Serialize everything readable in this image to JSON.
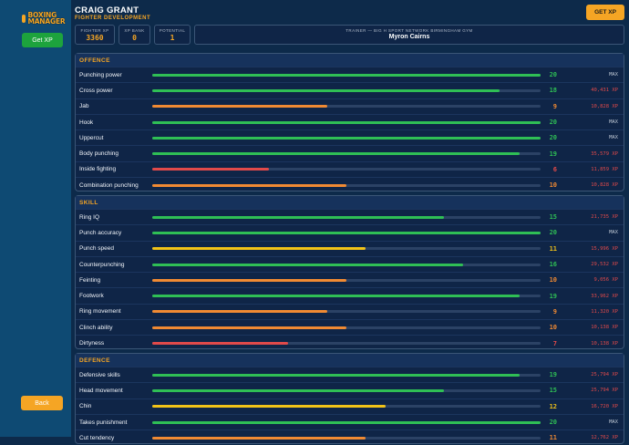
{
  "sidebar": {
    "logo_text": "BOXING MANAGER",
    "get_xp_label": "Get XP",
    "back_label": "Back"
  },
  "header": {
    "name": "CRAIG GRANT",
    "subtitle": "FIGHTER DEVELOPMENT",
    "get_xp_label": "GET XP",
    "stats": [
      {
        "label": "FIGHTER XP",
        "value": "3360"
      },
      {
        "label": "XP BANK",
        "value": "0"
      },
      {
        "label": "POTENTIAL",
        "value": "1"
      }
    ],
    "trainer_label": "TRAINER — BIG H SPORT NETWORK BIRMINGHAM GYM",
    "trainer_name": "Myron Cairns"
  },
  "colors": {
    "green": "#2fbf55",
    "orange": "#f08a33",
    "yellow": "#f2c318",
    "red": "#e14a4a",
    "accent": "#f5a524"
  },
  "sections": [
    {
      "title": "OFFENCE",
      "rows": [
        {
          "name": "Punching power",
          "level": "20",
          "progress": 1.0,
          "color": "green",
          "cost": "MAX"
        },
        {
          "name": "Cross power",
          "level": "18",
          "progress": 0.895,
          "color": "green",
          "cost": "40,431 XP"
        },
        {
          "name": "Jab",
          "level": "9",
          "progress": 0.45,
          "color": "orange",
          "cost": "10,828 XP"
        },
        {
          "name": "Hook",
          "level": "20",
          "progress": 1.0,
          "color": "green",
          "cost": "MAX"
        },
        {
          "name": "Uppercut",
          "level": "20",
          "progress": 1.0,
          "color": "green",
          "cost": "MAX"
        },
        {
          "name": "Body punching",
          "level": "19",
          "progress": 0.945,
          "color": "green",
          "cost": "35,579 XP"
        },
        {
          "name": "Inside fighting",
          "level": "6",
          "progress": 0.3,
          "color": "red",
          "cost": "11,859 XP"
        },
        {
          "name": "Combination punching",
          "level": "10",
          "progress": 0.5,
          "color": "orange",
          "cost": "10,828 XP"
        }
      ]
    },
    {
      "title": "SKILL",
      "rows": [
        {
          "name": "Ring IQ",
          "level": "15",
          "progress": 0.75,
          "color": "green",
          "cost": "21,735 XP"
        },
        {
          "name": "Punch accuracy",
          "level": "20",
          "progress": 1.0,
          "color": "green",
          "cost": "MAX"
        },
        {
          "name": "Punch speed",
          "level": "11",
          "progress": 0.55,
          "color": "yellow",
          "cost": "15,996 XP"
        },
        {
          "name": "Counterpunching",
          "level": "16",
          "progress": 0.8,
          "color": "green",
          "cost": "29,532 XP"
        },
        {
          "name": "Feinting",
          "level": "10",
          "progress": 0.5,
          "color": "orange",
          "cost": "9,056 XP"
        },
        {
          "name": "Footwork",
          "level": "19",
          "progress": 0.945,
          "color": "green",
          "cost": "33,962 XP"
        },
        {
          "name": "Ring movement",
          "level": "9",
          "progress": 0.45,
          "color": "orange",
          "cost": "11,320 XP"
        },
        {
          "name": "Clinch ability",
          "level": "10",
          "progress": 0.5,
          "color": "orange",
          "cost": "10,138 XP"
        },
        {
          "name": "Dirtyness",
          "level": "7",
          "progress": 0.35,
          "color": "red",
          "cost": "10,138 XP"
        }
      ]
    },
    {
      "title": "DEFENCE",
      "rows": [
        {
          "name": "Defensive skills",
          "level": "19",
          "progress": 0.945,
          "color": "green",
          "cost": "25,794 XP"
        },
        {
          "name": "Head movement",
          "level": "15",
          "progress": 0.75,
          "color": "green",
          "cost": "25,794 XP"
        },
        {
          "name": "Chin",
          "level": "12",
          "progress": 0.6,
          "color": "yellow",
          "cost": "16,720 XP"
        },
        {
          "name": "Takes punishment",
          "level": "20",
          "progress": 1.0,
          "color": "green",
          "cost": "MAX"
        },
        {
          "name": "Cut tendency",
          "level": "11",
          "progress": 0.55,
          "color": "orange",
          "cost": "12,762 XP"
        }
      ]
    }
  ]
}
